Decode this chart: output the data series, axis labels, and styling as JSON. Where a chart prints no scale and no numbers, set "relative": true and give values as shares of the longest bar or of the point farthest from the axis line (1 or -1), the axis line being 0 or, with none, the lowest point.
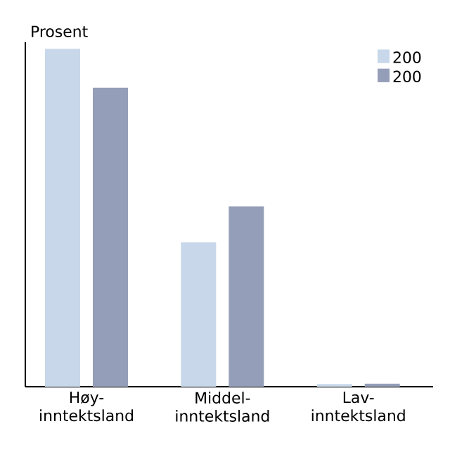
{
  "chart_data": {
    "type": "bar",
    "relative": true,
    "ylabel": "Prosent",
    "categories": [
      "Høy-inntektsland",
      "Middel-inntektsland",
      "Lav-inntektsland"
    ],
    "series": [
      {
        "name": "200",
        "color": "#c8d8ea",
        "values": [
          1,
          0.428,
          0.008
        ]
      },
      {
        "name": "200",
        "color": "#959eb8",
        "values": [
          0.885,
          0.534,
          0.009
        ]
      }
    ],
    "legend": "top right"
  }
}
